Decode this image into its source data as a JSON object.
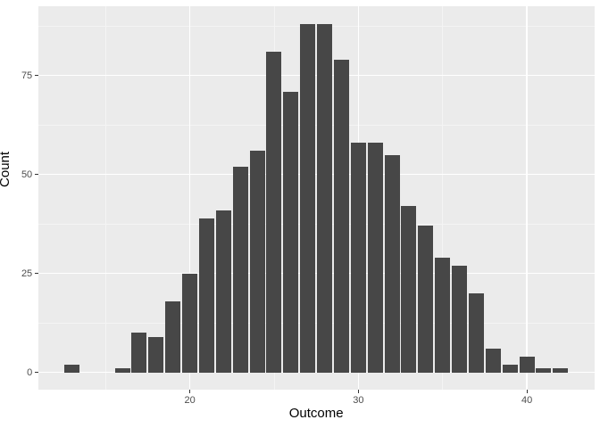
{
  "chart_data": {
    "type": "bar",
    "subtype": "histogram",
    "title": "",
    "xlabel": "Outcome",
    "ylabel": "Count",
    "bin_width": 1,
    "bins": [
      {
        "x": 13,
        "count": 2
      },
      {
        "x": 14,
        "count": 0
      },
      {
        "x": 15,
        "count": 0
      },
      {
        "x": 16,
        "count": 1
      },
      {
        "x": 17,
        "count": 10
      },
      {
        "x": 18,
        "count": 9
      },
      {
        "x": 19,
        "count": 18
      },
      {
        "x": 20,
        "count": 25
      },
      {
        "x": 21,
        "count": 39
      },
      {
        "x": 22,
        "count": 41
      },
      {
        "x": 23,
        "count": 52
      },
      {
        "x": 24,
        "count": 56
      },
      {
        "x": 25,
        "count": 81
      },
      {
        "x": 26,
        "count": 71
      },
      {
        "x": 27,
        "count": 88
      },
      {
        "x": 28,
        "count": 88
      },
      {
        "x": 29,
        "count": 79
      },
      {
        "x": 30,
        "count": 58
      },
      {
        "x": 31,
        "count": 58
      },
      {
        "x": 32,
        "count": 55
      },
      {
        "x": 33,
        "count": 42
      },
      {
        "x": 34,
        "count": 37
      },
      {
        "x": 35,
        "count": 29
      },
      {
        "x": 36,
        "count": 27
      },
      {
        "x": 37,
        "count": 20
      },
      {
        "x": 38,
        "count": 6
      },
      {
        "x": 39,
        "count": 2
      },
      {
        "x": 40,
        "count": 4
      },
      {
        "x": 41,
        "count": 1
      },
      {
        "x": 42,
        "count": 1
      }
    ],
    "total_n": 1000,
    "xlim": [
      11,
      44
    ],
    "ylim": [
      -4.43,
      92.63
    ],
    "x_ticks": [
      20,
      30,
      40
    ],
    "y_ticks": [
      0,
      25,
      50,
      75
    ],
    "x_minor_gridlines": [
      15,
      25,
      35
    ],
    "y_minor_gridlines": [
      12.5,
      37.5,
      62.5,
      87.5
    ],
    "grid": true,
    "legend": "none",
    "colors": {
      "bar_fill": "#474747",
      "panel_background": "#EBEBEB",
      "grid_major": "#FFFFFF",
      "grid_minor": "#F4F4F4",
      "tick_label": "#4D4D4D",
      "axis_title": "#000000",
      "tick_mark": "#333333",
      "figure_background": "#FFFFFF"
    }
  }
}
